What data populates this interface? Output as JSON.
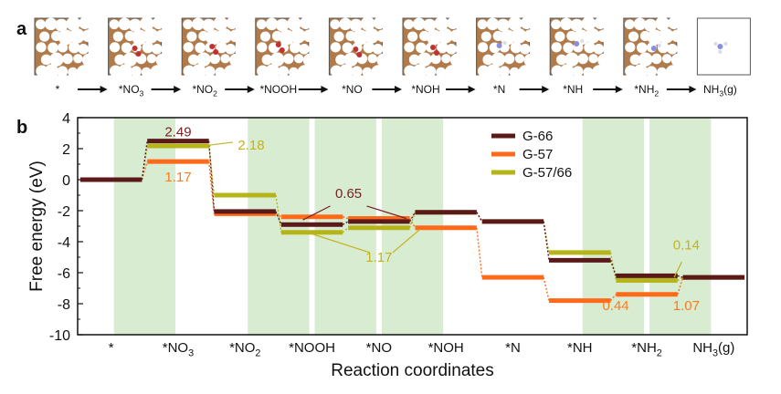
{
  "panel_a": {
    "label": "a",
    "states": [
      {
        "label": "*",
        "sub": ""
      },
      {
        "label": "*NO",
        "sub": "3"
      },
      {
        "label": "*NO",
        "sub": "2"
      },
      {
        "label": "*NOOH",
        "sub": ""
      },
      {
        "label": "*NO",
        "sub": ""
      },
      {
        "label": "*NOH",
        "sub": ""
      },
      {
        "label": "*N",
        "sub": ""
      },
      {
        "label": "*NH",
        "sub": ""
      },
      {
        "label": "*NH",
        "sub": "2"
      },
      {
        "label": "NH",
        "sub": "3",
        "suffix": "(g)"
      }
    ]
  },
  "panel_b": {
    "label": "b"
  },
  "chart_data": {
    "type": "line",
    "xlabel": "Reaction coordinates",
    "ylabel": "Free energy (eV)",
    "ylim": [
      -10,
      4
    ],
    "yticks": [
      4,
      2,
      0,
      -2,
      -4,
      -6,
      -8,
      -10
    ],
    "categories": [
      {
        "label": "*",
        "sub": ""
      },
      {
        "label": "*NO",
        "sub": "3"
      },
      {
        "label": "*NO",
        "sub": "2"
      },
      {
        "label": "*NOOH",
        "sub": ""
      },
      {
        "label": "*NO",
        "sub": ""
      },
      {
        "label": "*NOH",
        "sub": ""
      },
      {
        "label": "*N",
        "sub": ""
      },
      {
        "label": "*NH",
        "sub": ""
      },
      {
        "label": "*NH",
        "sub": "2"
      },
      {
        "label": "NH",
        "sub": "3",
        "suffix": "(g)"
      }
    ],
    "shaded_steps": [
      1,
      3,
      4,
      5,
      8,
      9
    ],
    "series": [
      {
        "name": "G-66",
        "color": "#5a1a1a",
        "values": [
          0,
          2.49,
          -2.05,
          -2.9,
          -2.7,
          -2.1,
          -2.7,
          -5.2,
          -6.2,
          -6.3
        ]
      },
      {
        "name": "G-57",
        "color": "#ff6a1a",
        "values": [
          0,
          1.17,
          -2.2,
          -2.4,
          -2.5,
          -3.1,
          -6.3,
          -7.8,
          -7.4,
          -6.3
        ]
      },
      {
        "name": "G-57/66",
        "color": "#b5b51a",
        "values": [
          0,
          2.18,
          -1.0,
          -3.4,
          -3.1,
          -2.1,
          -2.7,
          -4.7,
          -6.5,
          -6.3
        ]
      }
    ],
    "annotations": [
      {
        "text": "2.49",
        "color": "#7a1f1f"
      },
      {
        "text": "2.18",
        "color": "#c4b21a"
      },
      {
        "text": "1.17",
        "color": "#ff7a1a"
      },
      {
        "text": "0.65",
        "color": "#7a1f1f"
      },
      {
        "text": "1.17",
        "color": "#c4b21a"
      },
      {
        "text": "0.14",
        "color": "#c4b21a"
      },
      {
        "text": "0.44",
        "color": "#ff7a1a"
      },
      {
        "text": "1.07",
        "color": "#ff7a1a"
      }
    ],
    "legend_placement": "top-right"
  }
}
